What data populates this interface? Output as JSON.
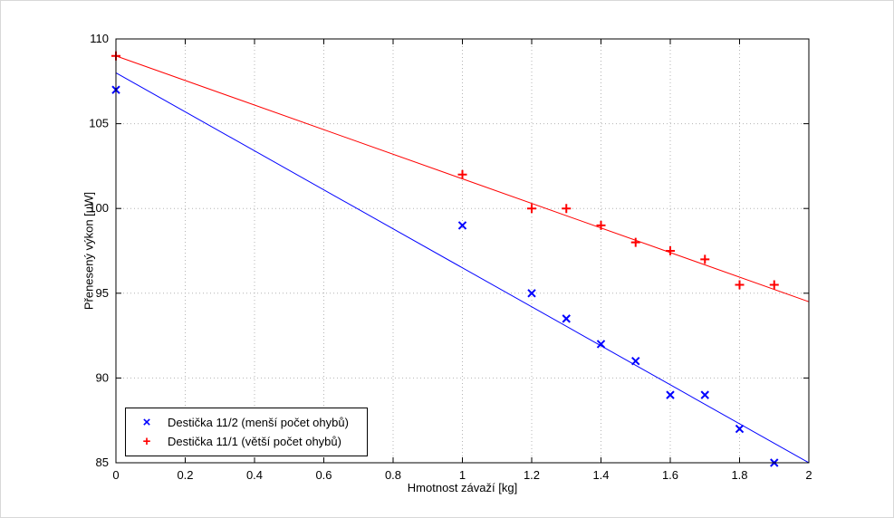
{
  "chart_data": {
    "type": "scatter",
    "title": "",
    "xlabel": "Hmotnost závaží [kg]",
    "ylabel": "Přenesený výkon [µW]",
    "xlim": [
      0,
      2
    ],
    "ylim": [
      85,
      110
    ],
    "xticks": [
      0,
      0.2,
      0.4,
      0.6,
      0.8,
      1,
      1.2,
      1.4,
      1.6,
      1.8,
      2
    ],
    "yticks": [
      85,
      90,
      95,
      100,
      105,
      110
    ],
    "grid": true,
    "grid_style": "dotted",
    "grid_color": "#b4b4b4",
    "axis_color": "#000000",
    "background_color": "#ffffff",
    "legend_position": "bottom-left",
    "series": [
      {
        "name": "Destička 11/2 (menší počet ohybů)",
        "marker": "x",
        "color": "#0000ff",
        "x": [
          0,
          1,
          1.2,
          1.3,
          1.4,
          1.5,
          1.6,
          1.7,
          1.8,
          1.9
        ],
        "y": [
          107,
          99,
          95,
          93.5,
          92,
          91,
          89,
          89,
          87,
          85
        ],
        "fit_line": {
          "x": [
            0,
            2
          ],
          "y": [
            108,
            85
          ]
        }
      },
      {
        "name": "Destička 11/1 (větší počet ohybů)",
        "marker": "+",
        "color": "#ff0000",
        "x": [
          0,
          1,
          1.2,
          1.3,
          1.4,
          1.5,
          1.6,
          1.7,
          1.8,
          1.9
        ],
        "y": [
          109,
          102,
          100,
          100,
          99,
          98,
          97.5,
          97,
          95.5,
          95.5
        ],
        "fit_line": {
          "x": [
            0,
            2
          ],
          "y": [
            109,
            94.5
          ]
        }
      }
    ]
  }
}
